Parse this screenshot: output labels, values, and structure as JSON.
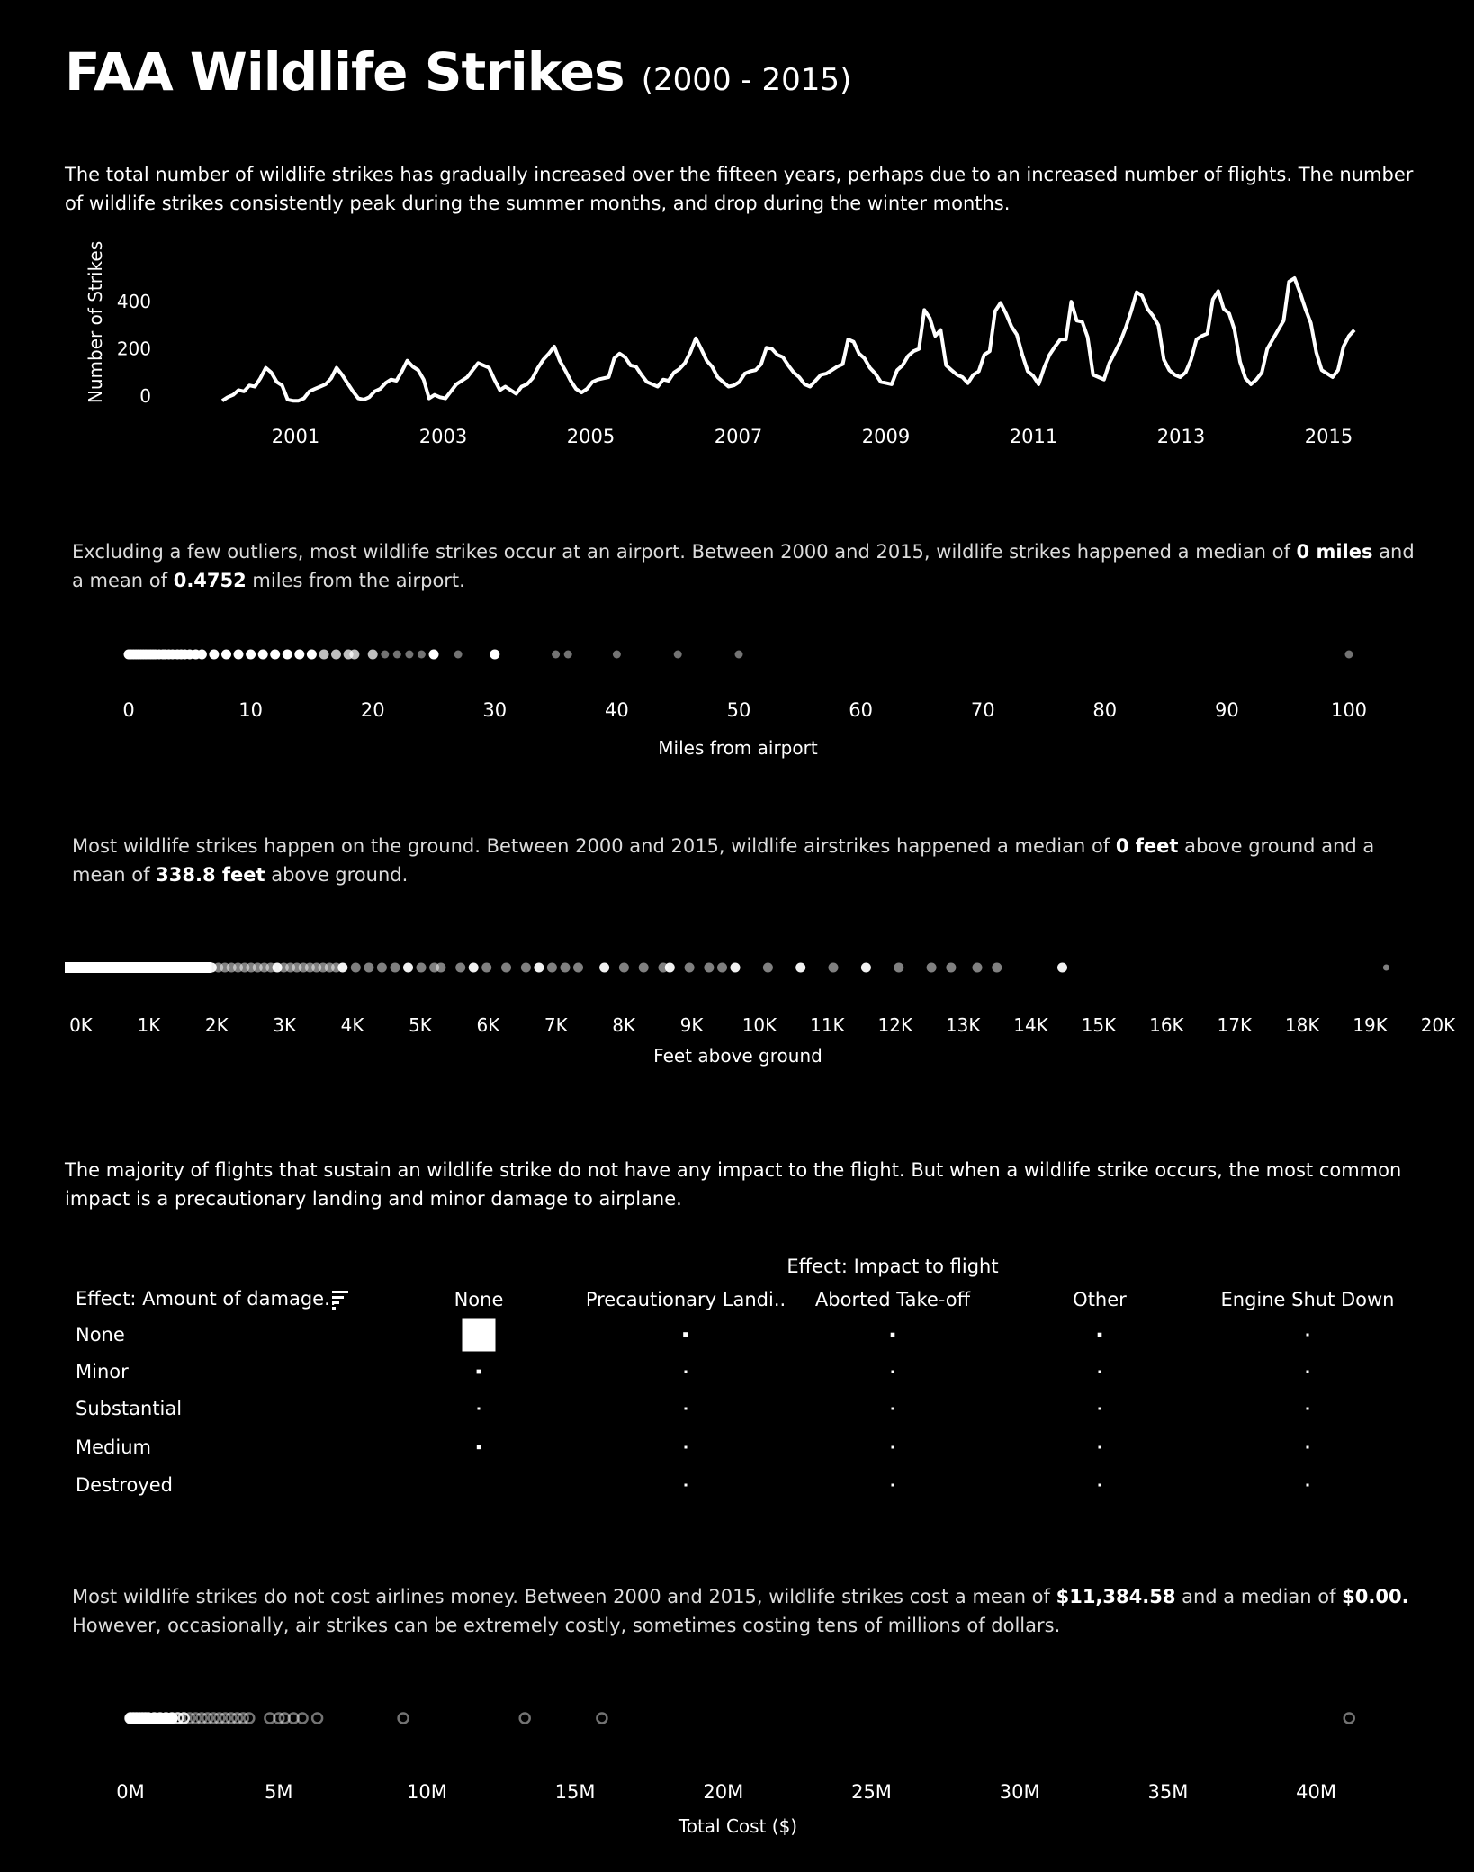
{
  "title": {
    "main": "FAA Wildlife Strikes",
    "sub": "(2000 - 2015)"
  },
  "intro_text": "The total number of wildlife strikes has gradually increased over the fifteen years, perhaps due to an increased number of flights. The number of wildlife strikes consistently peak during the summer months, and drop during the winter months.",
  "distance_text": {
    "p1": "Excluding a few outliers, most wildlife strikes occur at an airport. Between 2000 and 2015, wildlife strikes happened a median of ",
    "v1": "0 miles",
    "p2": " and a mean of ",
    "v2": "0.4752",
    "p3": " miles from the airport."
  },
  "height_text": {
    "p1": "Most wildlife strikes happen on the ground. Between 2000 and 2015, wildlife airstrikes happened a median of ",
    "v1": "0 feet",
    "p2": " above ground and a mean of ",
    "v2": "338.8 feet",
    "p3": " above ground."
  },
  "impact_text": "The majority of flights that sustain an wildlife strike do not have any impact to the flight. But when a wildlife strike occurs, the most common impact is a precautionary landing and minor damage to airplane.",
  "cost_text": {
    "p1": "Most wildlife strikes do not cost airlines money. Between 2000 and 2015, wildlife strikes cost a mean of ",
    "v1": "$11,384.58",
    "p2": " and a median of ",
    "v2": "$0.00.",
    "p3": "However,  occasionally, air strikes can be extremely costly, sometimes costing tens of millions of dollars."
  },
  "colors": {
    "background": "#000000",
    "foreground": "#ffffff"
  },
  "chart_data": [
    {
      "type": "line",
      "ylabel": "Number of Strikes",
      "xlabel": "",
      "ylim": [
        0,
        500
      ],
      "y_ticks": [
        "0",
        "200",
        "400"
      ],
      "x_ticks": [
        "2001",
        "2003",
        "2005",
        "2007",
        "2009",
        "2011",
        "2013",
        "2015"
      ],
      "series": [
        {
          "x_start": "2000-01",
          "x_end": "2015-07",
          "values": [
            -20,
            -5,
            5,
            25,
            20,
            45,
            40,
            75,
            120,
            100,
            60,
            45,
            -15,
            -20,
            -20,
            -10,
            20,
            30,
            40,
            50,
            75,
            120,
            90,
            55,
            20,
            -10,
            -15,
            -5,
            20,
            30,
            55,
            70,
            65,
            105,
            150,
            125,
            110,
            70,
            -10,
            5,
            -5,
            -10,
            20,
            50,
            65,
            80,
            110,
            140,
            130,
            120,
            70,
            25,
            40,
            25,
            10,
            40,
            50,
            75,
            120,
            155,
            180,
            210,
            150,
            110,
            65,
            30,
            15,
            30,
            60,
            70,
            75,
            80,
            160,
            180,
            165,
            130,
            125,
            90,
            60,
            50,
            40,
            70,
            65,
            100,
            115,
            140,
            185,
            245,
            200,
            150,
            125,
            80,
            60,
            40,
            45,
            60,
            95,
            105,
            110,
            135,
            205,
            200,
            175,
            165,
            130,
            100,
            80,
            50,
            40,
            65,
            90,
            95,
            110,
            125,
            135,
            240,
            230,
            180,
            160,
            120,
            95,
            60,
            55,
            50,
            110,
            130,
            170,
            190,
            200,
            365,
            330,
            255,
            280,
            130,
            110,
            90,
            80,
            55,
            90,
            105,
            175,
            190,
            360,
            395,
            350,
            295,
            260,
            175,
            105,
            85,
            50,
            120,
            175,
            210,
            240,
            240,
            400,
            320,
            315,
            250,
            90,
            80,
            70,
            140,
            185,
            230,
            290,
            360,
            440,
            425,
            370,
            340,
            300,
            155,
            110,
            90,
            80,
            100,
            155,
            240,
            255,
            265,
            410,
            445,
            370,
            350,
            280,
            145,
            75,
            50,
            70,
            100,
            200,
            240,
            280,
            320,
            485,
            500,
            440,
            370,
            310,
            185,
            110,
            95,
            80,
            110,
            210,
            255,
            280
          ]
        }
      ]
    },
    {
      "type": "scatter",
      "xlabel": "Miles from airport",
      "xlim": [
        0,
        100
      ],
      "x_ticks": [
        "0",
        "10",
        "20",
        "30",
        "40",
        "50",
        "60",
        "70",
        "80",
        "90",
        "100"
      ],
      "values": [
        0,
        0.2,
        0.4,
        0.6,
        0.8,
        1,
        1.2,
        1.4,
        1.6,
        1.8,
        2,
        2.2,
        2.5,
        2.8,
        3,
        3.3,
        3.6,
        4,
        4.3,
        4.6,
        5,
        5.5,
        6,
        7,
        8,
        9,
        10,
        11,
        12,
        13,
        14,
        15,
        16,
        17,
        18,
        18.5,
        20,
        21,
        22,
        23,
        24,
        25,
        27,
        30,
        35,
        36,
        40,
        45,
        50,
        100
      ]
    },
    {
      "type": "scatter",
      "xlabel": "Feet above ground",
      "xlim": [
        0,
        20000
      ],
      "x_ticks": [
        "0K",
        "1K",
        "2K",
        "3K",
        "4K",
        "5K",
        "6K",
        "7K",
        "8K",
        "9K",
        "10K",
        "11K",
        "12K",
        "13K",
        "14K",
        "15K",
        "16K",
        "17K",
        "18K",
        "19K",
        "20K"
      ],
      "values": [
        0,
        100,
        200,
        300,
        400,
        500,
        600,
        700,
        800,
        900,
        1000,
        1100,
        1200,
        1300,
        1400,
        1500,
        1600,
        1700,
        1800,
        1900,
        2000,
        2100,
        2200,
        2300,
        2400,
        2500,
        2600,
        2700,
        2800,
        2900,
        3000,
        3100,
        3200,
        3300,
        3400,
        3500,
        3600,
        3700,
        3800,
        3900,
        4000,
        4200,
        4400,
        4600,
        4800,
        5000,
        5200,
        5400,
        5500,
        5800,
        6000,
        6200,
        6500,
        6800,
        7000,
        7200,
        7400,
        7600,
        8000,
        8300,
        8600,
        8900,
        9000,
        9300,
        9600,
        9800,
        10000,
        10500,
        11000,
        11500,
        12000,
        12500,
        13000,
        13300,
        13700,
        14000,
        15000,
        19950
      ]
    },
    {
      "type": "heatmap",
      "row_header": "Effect: Amount of damage..",
      "col_header": "Effect: Impact to flight",
      "rows": [
        "None",
        "Minor",
        "Substantial",
        "Medium",
        "Destroyed"
      ],
      "columns": [
        "None",
        "Precautionary Landi..",
        "Aborted Take-off",
        "Other",
        "Engine Shut Down"
      ],
      "values": [
        [
          1300,
          30,
          20,
          20,
          4
        ],
        [
          22,
          4,
          2,
          2,
          2
        ],
        [
          3,
          2,
          2,
          2,
          2
        ],
        [
          18,
          2,
          2,
          2,
          2
        ],
        [
          0,
          2,
          2,
          2,
          2
        ]
      ]
    },
    {
      "type": "scatter",
      "xlabel": "Total Cost ($)",
      "xlim": [
        -2000000,
        42000000
      ],
      "x_ticks": [
        "0M",
        "5M",
        "10M",
        "15M",
        "20M",
        "25M",
        "30M",
        "35M",
        "40M"
      ],
      "values": [
        0,
        100000,
        200000,
        300000,
        400000,
        500000,
        600000,
        800000,
        1000000,
        1200000,
        1400000,
        1600000,
        1800000,
        2000000,
        2200000,
        2400000,
        2600000,
        2800000,
        3000000,
        3200000,
        3400000,
        3600000,
        3800000,
        4000000,
        4700000,
        5000000,
        5200000,
        5500000,
        5800000,
        6300000,
        9200000,
        13300000,
        15900000,
        41100000
      ]
    }
  ]
}
